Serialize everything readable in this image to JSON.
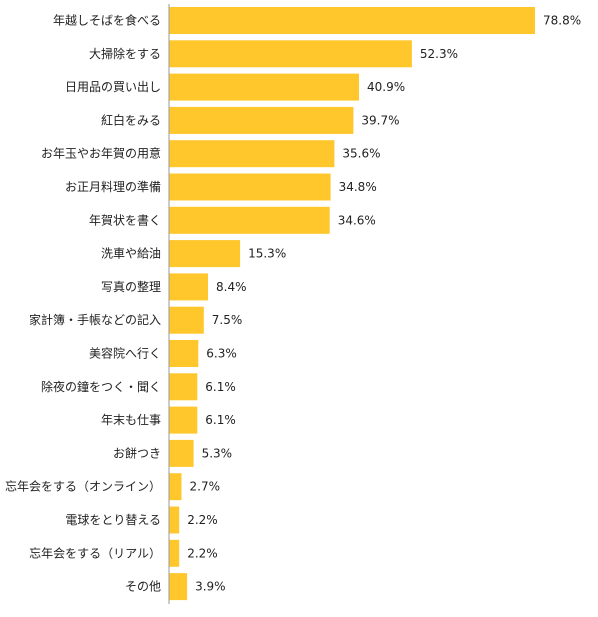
{
  "chart_data": {
    "type": "bar",
    "orientation": "horizontal",
    "categories": [
      "年越しそばを食べる",
      "大掃除をする",
      "日用品の買い出し",
      "紅白をみる",
      "お年玉やお年賀の用意",
      "お正月料理の準備",
      "年賀状を書く",
      "洗車や給油",
      "写真の整理",
      "家計簿・手帳などの記入",
      "美容院へ行く",
      "除夜の鐘をつく・聞く",
      "年末も仕事",
      "お餅つき",
      "忘年会をする（オンライン）",
      "電球をとり替える",
      "忘年会をする（リアル）",
      "その他"
    ],
    "values": [
      78.8,
      52.3,
      40.9,
      39.7,
      35.6,
      34.8,
      34.6,
      15.3,
      8.4,
      7.5,
      6.3,
      6.1,
      6.1,
      5.3,
      2.7,
      2.2,
      2.2,
      3.9
    ],
    "value_labels": [
      "78.8%",
      "52.3%",
      "40.9%",
      "39.7%",
      "35.6%",
      "34.8%",
      "34.6%",
      "15.3%",
      "8.4%",
      "7.5%",
      "6.3%",
      "6.1%",
      "6.1%",
      "5.3%",
      "2.7%",
      "2.2%",
      "2.2%",
      "3.9%"
    ],
    "unit": "%",
    "xlim": [
      0,
      100
    ],
    "grid": false,
    "colors": {
      "bar": "#FFC72C",
      "axis": "#999999",
      "text": "#222222"
    }
  }
}
